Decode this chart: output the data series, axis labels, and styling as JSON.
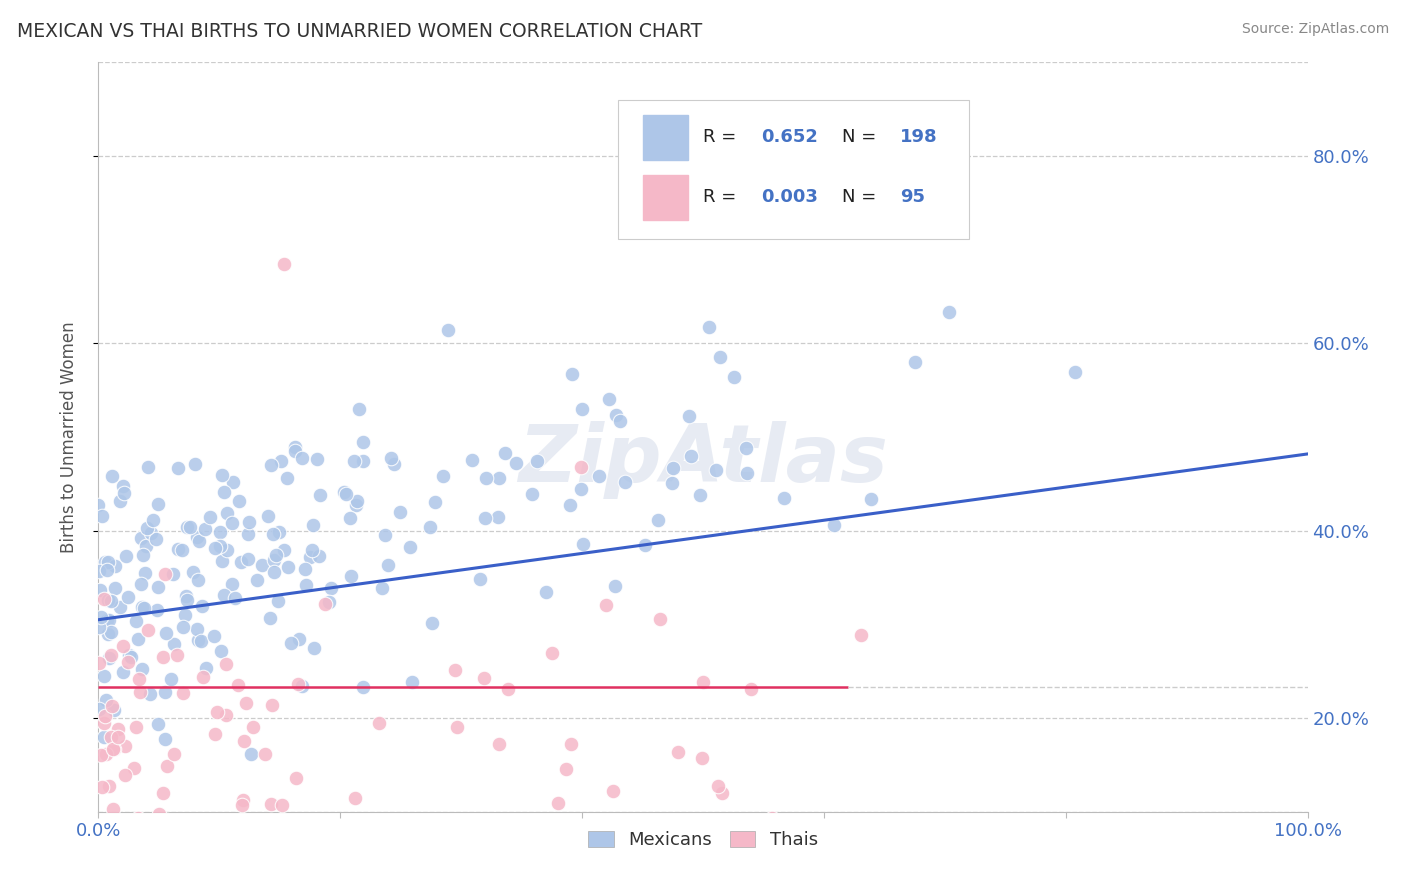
{
  "title": "MEXICAN VS THAI BIRTHS TO UNMARRIED WOMEN CORRELATION CHART",
  "source": "Source: ZipAtlas.com",
  "ylabel": "Births to Unmarried Women",
  "x_min": 0.0,
  "x_max": 1.0,
  "y_min": 0.1,
  "y_max": 0.9,
  "x_ticks": [
    0.0,
    0.2,
    0.4,
    0.6,
    0.8,
    1.0
  ],
  "x_tick_labels": [
    "0.0%",
    "",
    "",
    "",
    "",
    "100.0%"
  ],
  "y_ticks": [
    0.2,
    0.4,
    0.6,
    0.8
  ],
  "y_tick_labels": [
    "20.0%",
    "40.0%",
    "60.0%",
    "80.0%"
  ],
  "mexican_color": "#aec6e8",
  "thai_color": "#f5b8c8",
  "mexican_line_color": "#3a5fc8",
  "thai_line_color": "#e03060",
  "legend_R_mexican": "0.652",
  "legend_N_mexican": "198",
  "legend_R_thai": "0.003",
  "legend_N_thai": "95",
  "watermark": "ZipAtlas",
  "background_color": "#ffffff",
  "grid_color": "#cccccc",
  "title_color": "#333333",
  "axis_label_color": "#555555",
  "tick_color": "#4472c4",
  "mexican_line_start_y": 0.305,
  "mexican_line_end_y": 0.482,
  "thai_line_y": 0.233,
  "thai_line_end_x": 0.62
}
